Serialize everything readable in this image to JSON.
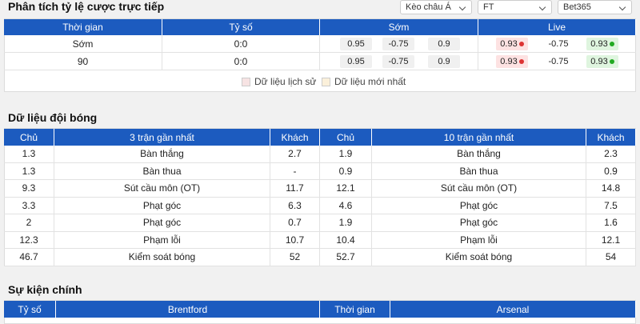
{
  "odds": {
    "title": "Phân tích tỷ lệ cược trực tiếp",
    "selects": [
      "Kèo châu Á",
      "FT",
      "Bet365"
    ],
    "headers": [
      "Thời gian",
      "Tỷ số",
      "Sớm",
      "Live"
    ],
    "rows": [
      {
        "time": "Sớm",
        "score": "0:0",
        "early": [
          "0.95",
          "-0.75",
          "0.9"
        ],
        "live": [
          "0.93",
          "-0.75",
          "0.93"
        ]
      },
      {
        "time": "90",
        "score": "0:0",
        "early": [
          "0.95",
          "-0.75",
          "0.9"
        ],
        "live": [
          "0.93",
          "-0.75",
          "0.93"
        ]
      }
    ],
    "legend": [
      "Dữ liệu lịch sử",
      "Dữ liệu mới nhất"
    ]
  },
  "team_data": {
    "title": "Dữ liệu đội bóng",
    "headers": [
      "Chủ",
      "3 trận gần nhất",
      "Khách",
      "Chủ",
      "10 trận gần nhất",
      "Khách"
    ],
    "rows": [
      [
        "1.3",
        "Bàn thắng",
        "2.7",
        "1.9",
        "Bàn thắng",
        "2.3"
      ],
      [
        "1.3",
        "Bàn thua",
        "-",
        "0.9",
        "Bàn thua",
        "0.9"
      ],
      [
        "9.3",
        "Sút cầu môn (OT)",
        "11.7",
        "12.1",
        "Sút cầu môn (OT)",
        "14.8"
      ],
      [
        "3.3",
        "Phạt góc",
        "6.3",
        "4.6",
        "Phạt góc",
        "7.5"
      ],
      [
        "2",
        "Phạt góc",
        "0.7",
        "1.9",
        "Phạt góc",
        "1.6"
      ],
      [
        "12.3",
        "Phạm lỗi",
        "10.7",
        "10.4",
        "Phạm lỗi",
        "12.1"
      ],
      [
        "46.7",
        "Kiểm soát bóng",
        "52",
        "52.7",
        "Kiểm soát bóng",
        "54"
      ]
    ]
  },
  "events": {
    "title": "Sự kiện chính",
    "headers": [
      "Tỷ số",
      "Brentford",
      "Thời gian",
      "Arsenal"
    ]
  }
}
